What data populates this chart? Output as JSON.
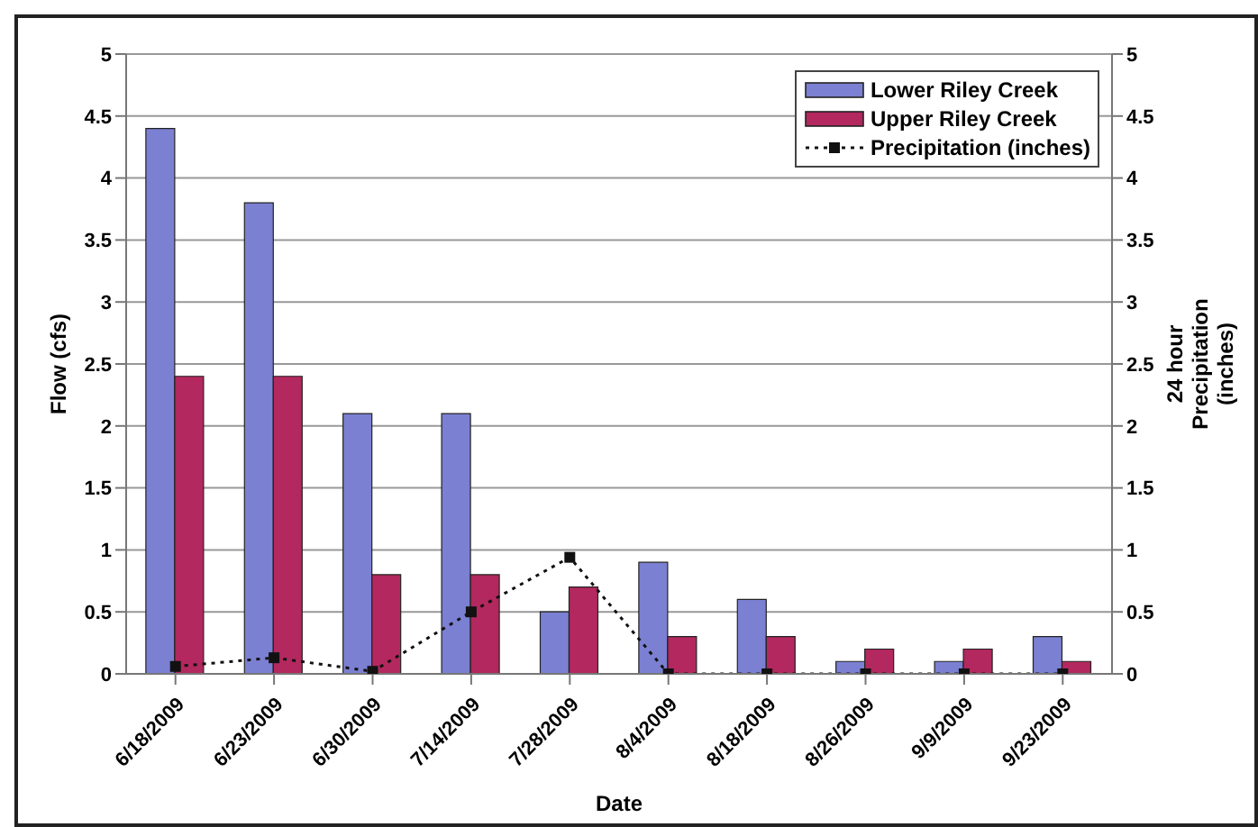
{
  "chart_data": {
    "type": "bar",
    "xlabel": "Date",
    "ylabel": "Flow (cfs)",
    "y2label": "24 hour Precipitation (inches)",
    "categories": [
      "6/18/2009",
      "6/23/2009",
      "6/30/2009",
      "7/14/2009",
      "7/28/2009",
      "8/4/2009",
      "8/18/2009",
      "8/26/2009",
      "9/9/2009",
      "9/23/2009"
    ],
    "series": [
      {
        "name": "Lower Riley Creek",
        "color": "#7b80d2",
        "values": [
          4.4,
          3.8,
          2.1,
          2.1,
          0.5,
          0.9,
          0.6,
          0.1,
          0.1,
          0.3
        ]
      },
      {
        "name": "Upper Riley Creek",
        "color": "#b3285e",
        "values": [
          2.4,
          2.4,
          0.8,
          0.8,
          0.7,
          0.3,
          0.3,
          0.2,
          0.2,
          0.1
        ]
      },
      {
        "name": "Precipitation (inches)",
        "type": "line",
        "axis": "y2",
        "color": "#111111",
        "marker": "square",
        "line_style": "dotted",
        "values": [
          0.06,
          0.13,
          0.02,
          0.5,
          0.94,
          0,
          0,
          0,
          0,
          0
        ]
      }
    ],
    "ylim": [
      0,
      5
    ],
    "yticks": [
      0,
      0.5,
      1,
      1.5,
      2,
      2.5,
      3,
      3.5,
      4,
      4.5,
      5
    ],
    "y2lim": [
      0,
      5
    ],
    "y2ticks": [
      0,
      0.5,
      1,
      1.5,
      2,
      2.5,
      3,
      3.5,
      4,
      4.5,
      5
    ],
    "grid": "y",
    "legend": "top right"
  }
}
